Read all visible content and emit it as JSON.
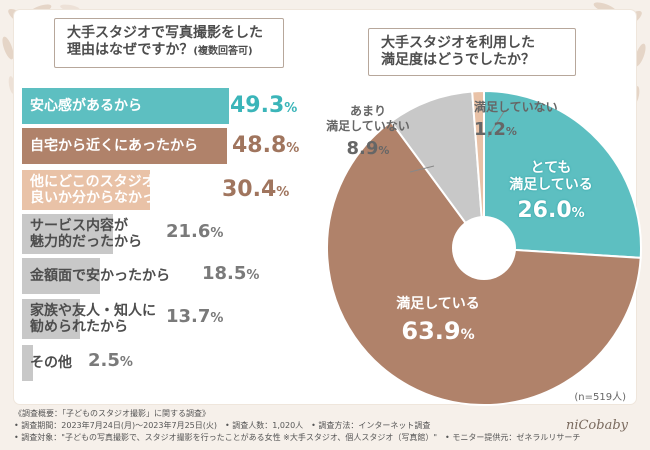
{
  "colors": {
    "teal": "#5dbfc1",
    "brown": "#b0826a",
    "peach": "#e9c2a7",
    "gray": "#c8c8c8",
    "teal_text": "#3bb5b9",
    "brown_text": "#a0755e",
    "gray_text": "#7a7a7a"
  },
  "left_chart": {
    "question_line1": "大手スタジオで写真撮影をした",
    "question_line2": "理由はなぜですか？",
    "question_note": "(複数回答可)"
  },
  "right_chart": {
    "question_line1": "大手スタジオを利用した",
    "question_line2": "満足度はどうでしたか？"
  },
  "chart_data": [
    {
      "type": "bar",
      "orientation": "horizontal",
      "title": "大手スタジオで写真撮影をした理由はなぜですか？(複数回答可)",
      "categories": [
        "安心感があるから",
        "自宅から近くにあったから",
        "他にどこのスタジオが良いか分からなかったから",
        "サービス内容が魅力的だったから",
        "金額面で安かったから",
        "家族や友人・知人に勧められたから",
        "その他"
      ],
      "label_lines": [
        [
          "安心感があるから"
        ],
        [
          "自宅から近くにあったから"
        ],
        [
          "他にどこのスタジオが",
          "良いか分からなかったから"
        ],
        [
          "サービス内容が",
          "魅力的だったから"
        ],
        [
          "金額面で安かったから"
        ],
        [
          "家族や友人・知人に",
          "勧められたから"
        ],
        [
          "その他"
        ]
      ],
      "values": [
        49.3,
        48.8,
        30.4,
        21.6,
        18.5,
        13.7,
        2.5
      ],
      "value_labels": [
        "49.3",
        "48.8",
        "30.4",
        "21.6",
        "18.5",
        "13.7",
        "2.5"
      ],
      "unit": "%",
      "xlim": [
        0,
        50
      ]
    },
    {
      "type": "pie",
      "title": "大手スタジオを利用した満足度はどうでしたか？",
      "categories": [
        "とても満足している",
        "満足している",
        "あまり満足していない",
        "満足していない"
      ],
      "values": [
        26.0,
        63.9,
        8.9,
        1.2
      ],
      "value_labels": [
        "26.0",
        "63.9",
        "8.9",
        "1.2"
      ],
      "label_lines": [
        [
          "とても",
          "満足している"
        ],
        [
          "満足している"
        ],
        [
          "あまり",
          "満足していない"
        ],
        [
          "満足していない"
        ]
      ],
      "unit": "%",
      "n": "(n=519人)"
    }
  ],
  "footer": {
    "line1": "《調査概要：「子どものスタジオ撮影」に関する調査》",
    "line2": "• 調査期間：2023年7月24日(月)～2023年7月25日(火)　• 調査人数：1,020人　• 調査方法：インターネット調査",
    "line3": "• 調査対象：\"子どもの写真撮影で、スタジオ撮影を行ったことがある女性 ※大手スタジオ、個人スタジオ（写真館）\"　• モニター提供元：ゼネラルリサーチ"
  },
  "logo": "niCobaby"
}
